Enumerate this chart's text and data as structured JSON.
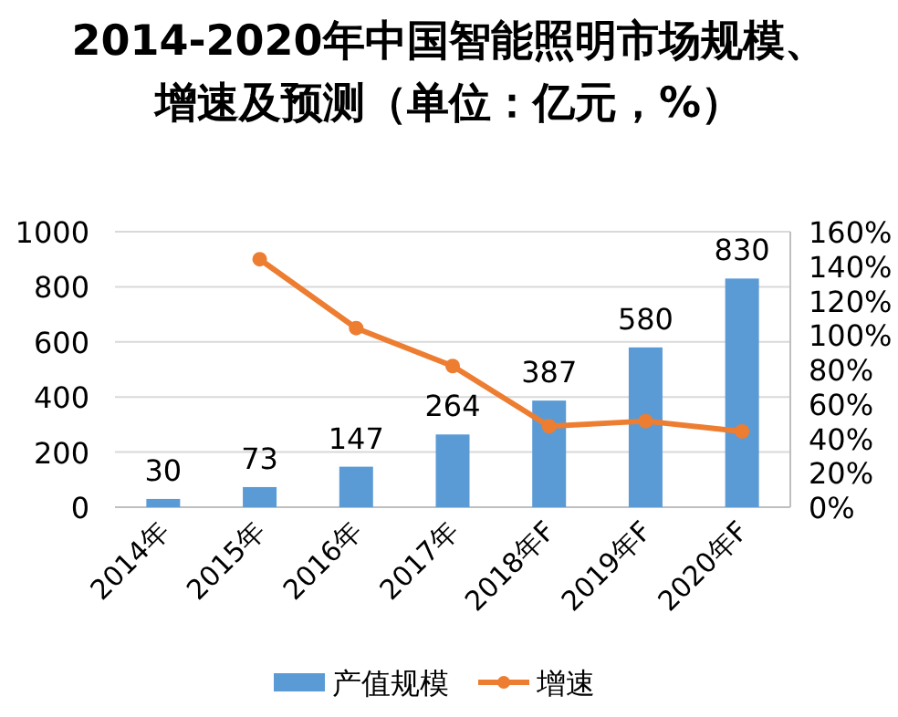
{
  "chart_data": {
    "type": "bar",
    "title": "2014-2020年中国智能照明市场规模、增速及预测（单位：亿元，%）",
    "categories": [
      "2014年",
      "2015年",
      "2016年",
      "2017年",
      "2018年F",
      "2019年F",
      "2020年F"
    ],
    "series": [
      {
        "name": "产值规模",
        "color": "#5b9bd5",
        "values": [
          30,
          73,
          147,
          264,
          387,
          580,
          830
        ],
        "value_labels": [
          "30",
          "73",
          "147",
          "264",
          "387",
          "580",
          "830"
        ]
      },
      {
        "name": "增速",
        "type": "line",
        "axis": "y2",
        "color": "#ed7d31",
        "marker": "circle",
        "values": [
          null,
          144,
          104,
          82,
          47,
          50,
          44
        ]
      }
    ],
    "ylim": [
      0,
      1000
    ],
    "yticks": [
      0,
      200,
      400,
      600,
      800,
      1000
    ],
    "y2lim": [
      0,
      160
    ],
    "y2ticks": [
      {
        "value": 0,
        "label": "0%"
      },
      {
        "value": 20,
        "label": "20%"
      },
      {
        "value": 40,
        "label": "40%"
      },
      {
        "value": 60,
        "label": "60%"
      },
      {
        "value": 80,
        "label": "80%"
      },
      {
        "value": 100,
        "label": "100%"
      },
      {
        "value": 120,
        "label": "120%"
      },
      {
        "value": 140,
        "label": "140%"
      },
      {
        "value": 160,
        "label": "160%"
      }
    ],
    "grid": "y",
    "legend": "bottom"
  }
}
